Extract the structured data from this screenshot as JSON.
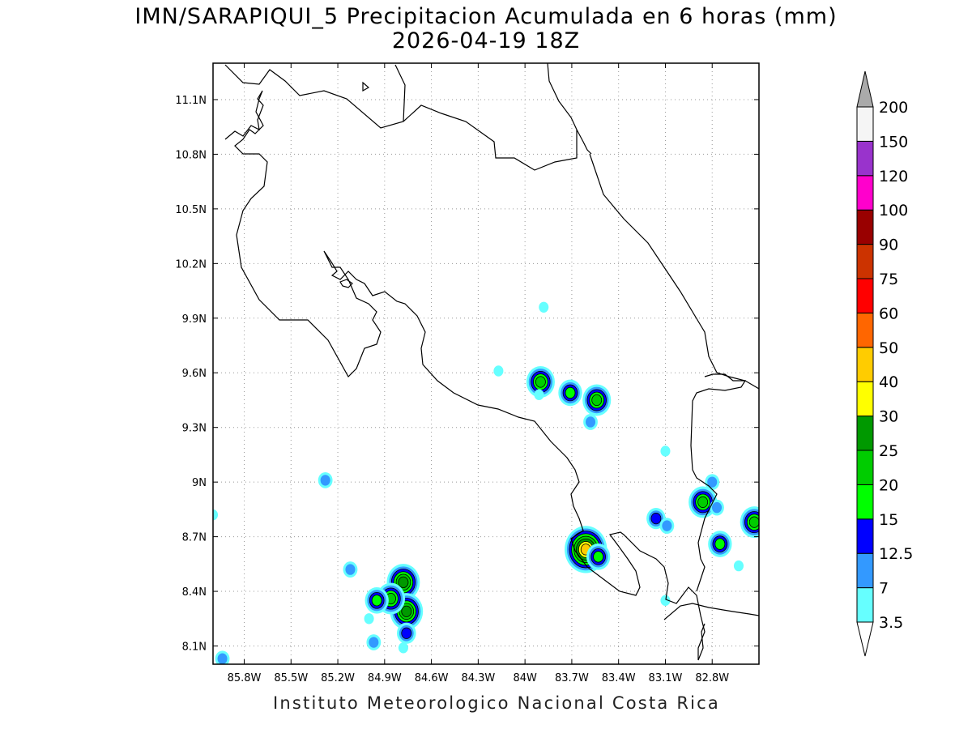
{
  "title_line1": "IMN/SARAPIQUI_5 Precipitacion Acumulada en 6 horas (mm)",
  "title_line2": "2026-04-19 18Z",
  "credit": "Instituto Meteorologico Nacional Costa Rica",
  "map": {
    "lon_range": [
      -86.0,
      -82.5
    ],
    "lat_range": [
      8.0,
      11.3
    ],
    "lon_ticks": [
      {
        "value": -85.8,
        "label": "85.8W"
      },
      {
        "value": -85.5,
        "label": "85.5W"
      },
      {
        "value": -85.2,
        "label": "85.2W"
      },
      {
        "value": -84.9,
        "label": "84.9W"
      },
      {
        "value": -84.6,
        "label": "84.6W"
      },
      {
        "value": -84.3,
        "label": "84.3W"
      },
      {
        "value": -84.0,
        "label": "84W"
      },
      {
        "value": -83.7,
        "label": "83.7W"
      },
      {
        "value": -83.4,
        "label": "83.4W"
      },
      {
        "value": -83.1,
        "label": "83.1W"
      },
      {
        "value": -82.8,
        "label": "82.8W"
      }
    ],
    "lat_ticks": [
      {
        "value": 8.1,
        "label": "8.1N"
      },
      {
        "value": 8.4,
        "label": "8.4N"
      },
      {
        "value": 8.7,
        "label": "8.7N"
      },
      {
        "value": 9.0,
        "label": "9N"
      },
      {
        "value": 9.3,
        "label": "9.3N"
      },
      {
        "value": 9.6,
        "label": "9.6N"
      },
      {
        "value": 9.9,
        "label": "9.9N"
      },
      {
        "value": 10.2,
        "label": "10.2N"
      },
      {
        "value": 10.5,
        "label": "10.5N"
      },
      {
        "value": 10.8,
        "label": "10.8N"
      },
      {
        "value": 11.1,
        "label": "11.1N"
      }
    ],
    "grid": true,
    "coastline_color": "#000000"
  },
  "colorbar": {
    "levels": [
      "3.5",
      "7",
      "12.5",
      "15",
      "20",
      "25",
      "30",
      "40",
      "50",
      "60",
      "75",
      "90",
      "100",
      "120",
      "150",
      "200"
    ],
    "colors": [
      "#66ffff",
      "#3399ff",
      "#0000ff",
      "#00ff00",
      "#00cc00",
      "#009900",
      "#ffff00",
      "#ffcc00",
      "#ff6600",
      "#ff0000",
      "#cc3300",
      "#990000",
      "#ff00cc",
      "#9933cc",
      "#f5f5f5"
    ],
    "under_color": "#ffffff",
    "over_color": "#aaaaaa"
  },
  "precip_cells": [
    {
      "lon": -84.78,
      "lat": 8.45,
      "peak_mm": 25
    },
    {
      "lon": -84.76,
      "lat": 8.29,
      "peak_mm": 25
    },
    {
      "lon": -84.86,
      "lat": 8.36,
      "peak_mm": 20
    },
    {
      "lon": -84.95,
      "lat": 8.35,
      "peak_mm": 15
    },
    {
      "lon": -85.12,
      "lat": 8.52,
      "peak_mm": 7
    },
    {
      "lon": -85.28,
      "lat": 9.01,
      "peak_mm": 7
    },
    {
      "lon": -84.97,
      "lat": 8.12,
      "peak_mm": 7
    },
    {
      "lon": -84.76,
      "lat": 8.17,
      "peak_mm": 12.5
    },
    {
      "lon": -85.0,
      "lat": 8.25,
      "peak_mm": 3.5
    },
    {
      "lon": -84.78,
      "lat": 8.09,
      "peak_mm": 3.5
    },
    {
      "lon": -85.94,
      "lat": 8.03,
      "peak_mm": 7
    },
    {
      "lon": -86.0,
      "lat": 8.82,
      "peak_mm": 3.5
    },
    {
      "lon": -83.9,
      "lat": 9.55,
      "peak_mm": 20
    },
    {
      "lon": -83.71,
      "lat": 9.49,
      "peak_mm": 15
    },
    {
      "lon": -83.54,
      "lat": 9.45,
      "peak_mm": 20
    },
    {
      "lon": -83.58,
      "lat": 9.33,
      "peak_mm": 7
    },
    {
      "lon": -83.61,
      "lat": 8.63,
      "peak_mm": 40
    },
    {
      "lon": -83.53,
      "lat": 8.59,
      "peak_mm": 15
    },
    {
      "lon": -83.16,
      "lat": 8.8,
      "peak_mm": 12.5
    },
    {
      "lon": -83.09,
      "lat": 8.76,
      "peak_mm": 7
    },
    {
      "lon": -82.86,
      "lat": 8.89,
      "peak_mm": 20
    },
    {
      "lon": -82.8,
      "lat": 9.0,
      "peak_mm": 7
    },
    {
      "lon": -82.75,
      "lat": 8.66,
      "peak_mm": 15
    },
    {
      "lon": -82.53,
      "lat": 8.78,
      "peak_mm": 20
    },
    {
      "lon": -82.77,
      "lat": 8.86,
      "peak_mm": 7
    },
    {
      "lon": -83.1,
      "lat": 9.17,
      "peak_mm": 3.5
    },
    {
      "lon": -83.91,
      "lat": 9.48,
      "peak_mm": 3.5
    },
    {
      "lon": -84.17,
      "lat": 9.61,
      "peak_mm": 3.5
    },
    {
      "lon": -83.88,
      "lat": 9.96,
      "peak_mm": 3.5
    },
    {
      "lon": -83.1,
      "lat": 8.35,
      "peak_mm": 3.5
    },
    {
      "lon": -82.63,
      "lat": 8.54,
      "peak_mm": 3.5
    }
  ]
}
